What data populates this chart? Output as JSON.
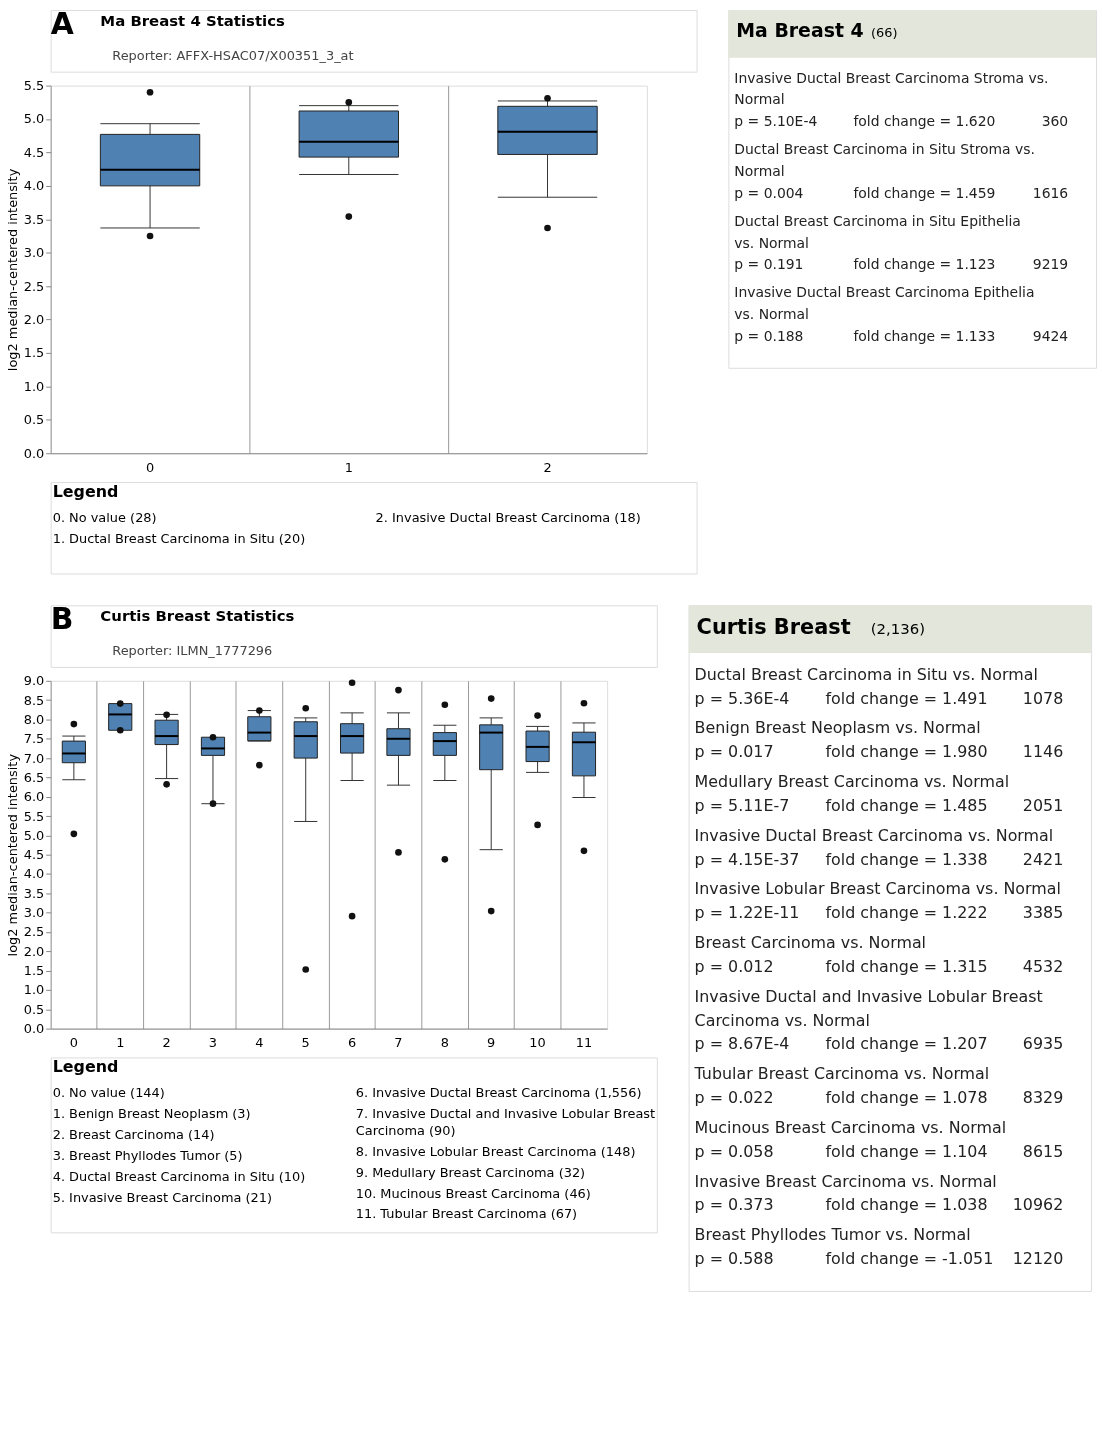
{
  "chart_data": [
    {
      "type": "box",
      "title": "Ma Breast 4 Statistics",
      "subtitle": "Reporter: AFFX-HSAC07/X00351_3_at",
      "ylabel": "log2 median-centered intensity",
      "color": "#4f81b3",
      "grid": "x",
      "categories": [
        "0",
        "1",
        "2"
      ],
      "boxes": [
        {
          "low": 3.37,
          "q1": 4.0,
          "median": 4.24,
          "q3": 4.77,
          "high": 4.93,
          "outliers": [
            5.4,
            3.25
          ]
        },
        {
          "low": 4.17,
          "q1": 4.43,
          "median": 4.66,
          "q3": 5.12,
          "high": 5.2,
          "outliers": [
            5.25,
            3.54
          ]
        },
        {
          "low": 3.83,
          "q1": 4.47,
          "median": 4.81,
          "q3": 5.19,
          "high": 5.27,
          "outliers": [
            5.31,
            3.37
          ]
        }
      ],
      "ylim": [
        0,
        5.5
      ],
      "yticks": [
        {
          "value": 0,
          "label": "0.0"
        },
        0.5,
        {
          "value": 1,
          "label": "1.0"
        },
        1.5,
        {
          "value": 2,
          "label": "2.0"
        },
        2.5,
        {
          "value": 3,
          "label": "3.0"
        },
        3.5,
        {
          "value": 4,
          "label": "4.0"
        },
        4.5,
        {
          "value": 5,
          "label": "5.0"
        },
        5.5
      ],
      "legend_title": "Legend",
      "annotations": [
        "A",
        "0. No value (28)",
        "1. Ductal Breast Carcinoma in Situ (20)",
        "2. Invasive Ductal Breast Carcinoma (18)"
      ]
    },
    {
      "type": "other",
      "title": "Ma Breast 4",
      "subtitle": "(66)",
      "annotations": [
        "Invasive Ductal Breast Carcinoma Stroma vs. Normal",
        "p = 5.10E-4",
        "fold change = 1.620",
        "360",
        "Ductal Breast Carcinoma in Situ Stroma vs. Normal",
        "p = 0.004",
        "fold change = 1.459",
        "1616",
        "Ductal Breast Carcinoma in Situ Epithelia vs. Normal",
        "p = 0.191",
        "fold change = 1.123",
        "9219",
        "Invasive Ductal Breast Carcinoma Epithelia vs. Normal",
        "p = 0.188",
        "fold change = 1.133",
        "9424"
      ]
    },
    {
      "type": "box",
      "title": "Curtis Breast Statistics",
      "subtitle": "Reporter: ILMN_1777296",
      "ylabel": "log2 median-centered intensity",
      "color": "#4f81b3",
      "grid": "x",
      "categories": [
        "0",
        "1",
        "2",
        "3",
        "4",
        "5",
        "6",
        "7",
        "8",
        "9",
        "10",
        "11"
      ],
      "boxes": [
        {
          "low": 6.44,
          "q1": 6.88,
          "median": 7.12,
          "q3": 7.44,
          "high": 7.57,
          "outliers": [
            7.88,
            5.04
          ]
        },
        {
          "low": 7.72,
          "q1": 7.72,
          "median": 8.13,
          "q3": 8.41,
          "high": 8.41,
          "outliers": [
            8.41,
            7.72
          ]
        },
        {
          "low": 6.47,
          "q1": 7.35,
          "median": 7.57,
          "q3": 7.98,
          "high": 8.13,
          "outliers": [
            8.12,
            6.32
          ]
        },
        {
          "low": 5.82,
          "q1": 7.07,
          "median": 7.25,
          "q3": 7.54,
          "high": 7.54,
          "outliers": [
            7.54,
            5.82
          ]
        },
        {
          "low": 7.44,
          "q1": 7.45,
          "median": 7.66,
          "q3": 8.07,
          "high": 8.23,
          "outliers": [
            8.23,
            6.82
          ]
        },
        {
          "low": 5.36,
          "q1": 7.0,
          "median": 7.57,
          "q3": 7.94,
          "high": 8.04,
          "outliers": [
            8.29,
            1.53
          ]
        },
        {
          "low": 6.42,
          "q1": 7.13,
          "median": 7.57,
          "q3": 7.89,
          "high": 8.17,
          "outliers": [
            8.95,
            2.91
          ]
        },
        {
          "low": 6.3,
          "q1": 7.07,
          "median": 7.5,
          "q3": 7.76,
          "high": 8.17,
          "outliers": [
            8.76,
            4.56
          ]
        },
        {
          "low": 6.42,
          "q1": 7.07,
          "median": 7.44,
          "q3": 7.66,
          "high": 7.85,
          "outliers": [
            8.38,
            4.38
          ]
        },
        {
          "low": 4.63,
          "q1": 6.7,
          "median": 7.66,
          "q3": 7.86,
          "high": 8.04,
          "outliers": [
            8.54,
            3.04
          ]
        },
        {
          "low": 6.63,
          "q1": 6.91,
          "median": 7.29,
          "q3": 7.7,
          "high": 7.82,
          "outliers": [
            8.1,
            5.27
          ]
        },
        {
          "low": 5.98,
          "q1": 6.54,
          "median": 7.41,
          "q3": 7.67,
          "high": 7.91,
          "outliers": [
            8.42,
            4.6
          ]
        }
      ],
      "ylim": [
        0,
        9
      ],
      "yticks": [
        {
          "value": 0,
          "label": "0.0"
        },
        0.5,
        {
          "value": 1,
          "label": "1.0"
        },
        1.5,
        {
          "value": 2,
          "label": "2.0"
        },
        2.5,
        {
          "value": 3,
          "label": "3.0"
        },
        3.5,
        {
          "value": 4,
          "label": "4.0"
        },
        4.5,
        {
          "value": 5,
          "label": "5.0"
        },
        5.5,
        {
          "value": 6,
          "label": "6.0"
        },
        6.5,
        {
          "value": 7,
          "label": "7.0"
        },
        7.5,
        {
          "value": 8,
          "label": "8.0"
        },
        8.5,
        {
          "value": 9,
          "label": "9.0"
        }
      ],
      "legend_title": "Legend",
      "annotations": [
        "B",
        "0. No value (144)",
        "1. Benign Breast Neoplasm (3)",
        "2. Breast Carcinoma (14)",
        "3. Breast Phyllodes Tumor (5)",
        "4. Ductal Breast Carcinoma in Situ (10)",
        "5. Invasive Breast Carcinoma (21)",
        "6. Invasive Ductal Breast Carcinoma (1,556)",
        "7. Invasive Ductal and Invasive Lobular Breast Carcinoma (90)",
        "8. Invasive Lobular Breast Carcinoma (148)",
        "9. Medullary Breast Carcinoma (32)",
        "10. Mucinous Breast Carcinoma (46)",
        "11. Tubular Breast Carcinoma (67)"
      ]
    },
    {
      "type": "other",
      "title": "Curtis Breast",
      "subtitle": "(2,136)",
      "annotations": [
        "Ductal Breast Carcinoma in Situ vs. Normal",
        "p = 5.36E-4",
        "fold change = 1.491",
        "1078",
        "Benign Breast Neoplasm vs. Normal",
        "p = 0.017",
        "fold change = 1.980",
        "1146",
        "Medullary Breast Carcinoma vs. Normal",
        "p = 5.11E-7",
        "fold change = 1.485",
        "2051",
        "Invasive Ductal Breast Carcinoma vs. Normal",
        "p = 4.15E-37",
        "fold change = 1.338",
        "2421",
        "Invasive Lobular Breast Carcinoma vs. Normal",
        "p = 1.22E-11",
        "fold change = 1.222",
        "3385",
        "Breast Carcinoma vs. Normal",
        "p = 0.012",
        "fold change = 1.315",
        "4532",
        "Invasive Ductal and Invasive Lobular Breast Carcinoma vs. Normal",
        "p = 8.67E-4",
        "fold change = 1.207",
        "6935",
        "Tubular Breast Carcinoma vs. Normal",
        "p = 0.022",
        "fold change = 1.078",
        "8329",
        "Mucinous Breast Carcinoma vs. Normal",
        "p = 0.058",
        "fold change = 1.104",
        "8615",
        "Invasive Breast Carcinoma vs. Normal",
        "p = 0.373",
        "fold change = 1.038",
        "10962",
        "Breast Phyllodes Tumor vs. Normal",
        "p = 0.588",
        "fold change = -1.051",
        "12120"
      ]
    }
  ]
}
